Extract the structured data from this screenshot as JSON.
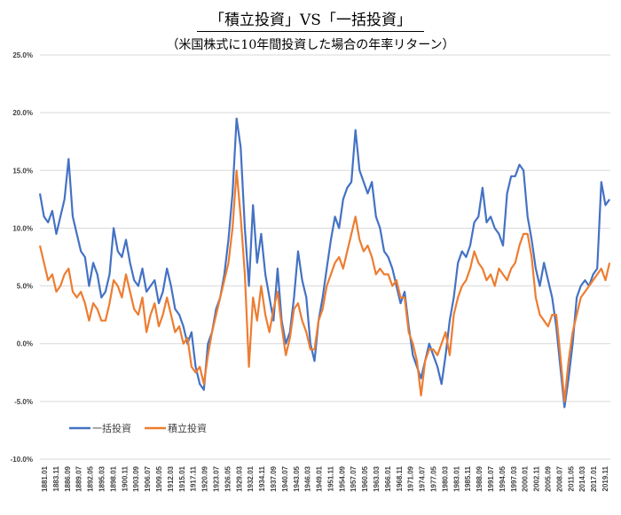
{
  "chart_data": {
    "type": "line",
    "title": "「積立投資」VS「一括投資」",
    "subtitle": "（米国株式に10年間投資した場合の年率リターン）",
    "xlabel": "",
    "ylabel": "",
    "ylim": [
      -0.1,
      0.25
    ],
    "yticks": [
      0.25,
      0.2,
      0.15,
      0.1,
      0.05,
      0.0,
      -0.05,
      -0.1
    ],
    "ytick_labels": [
      "25.0%",
      "20.0%",
      "15.0%",
      "10.0%",
      "5.0%",
      "0.0%",
      "-5.0%",
      "-10.0%"
    ],
    "xlim": [
      1881.0,
      2020.2
    ],
    "xtick_labels": [
      "1881.01",
      "1883.11",
      "1886.09",
      "1889.07",
      "1892.05",
      "1895.03",
      "1898.01",
      "1900.11",
      "1903.09",
      "1906.07",
      "1909.05",
      "1912.03",
      "1915.01",
      "1917.11",
      "1920.09",
      "1923.07",
      "1926.05",
      "1929.03",
      "1932.01",
      "1934.11",
      "1937.09",
      "1940.07",
      "1943.05",
      "1946.03",
      "1949.01",
      "1951.11",
      "1954.09",
      "1957.07",
      "1960.05",
      "1963.03",
      "1966.01",
      "1968.11",
      "1971.09",
      "1974.07",
      "1977.05",
      "1980.03",
      "1983.01",
      "1985.11",
      "1988.09",
      "1991.07",
      "1994.05",
      "1997.03",
      "2000.01",
      "2002.11",
      "2005.09",
      "2008.07",
      "2011.05",
      "2014.03",
      "2017.01",
      "2019.11"
    ],
    "grid": true,
    "legend": "bottom-left",
    "x": [
      1881,
      1882,
      1883,
      1884,
      1885,
      1886,
      1887,
      1888,
      1889,
      1890,
      1891,
      1892,
      1893,
      1894,
      1895,
      1896,
      1897,
      1898,
      1899,
      1900,
      1901,
      1902,
      1903,
      1904,
      1905,
      1906,
      1907,
      1908,
      1909,
      1910,
      1911,
      1912,
      1913,
      1914,
      1915,
      1916,
      1917,
      1918,
      1919,
      1920,
      1921,
      1922,
      1923,
      1924,
      1925,
      1926,
      1927,
      1928,
      1929,
      1930,
      1931,
      1932,
      1933,
      1934,
      1935,
      1936,
      1937,
      1938,
      1939,
      1940,
      1941,
      1942,
      1943,
      1944,
      1945,
      1946,
      1947,
      1948,
      1949,
      1950,
      1951,
      1952,
      1953,
      1954,
      1955,
      1956,
      1957,
      1958,
      1959,
      1960,
      1961,
      1962,
      1963,
      1964,
      1965,
      1966,
      1967,
      1968,
      1969,
      1970,
      1971,
      1972,
      1973,
      1974,
      1975,
      1976,
      1977,
      1978,
      1979,
      1980,
      1981,
      1982,
      1983,
      1984,
      1985,
      1986,
      1987,
      1988,
      1989,
      1990,
      1991,
      1992,
      1993,
      1994,
      1995,
      1996,
      1997,
      1998,
      1999,
      2000,
      2001,
      2002,
      2003,
      2004,
      2005,
      2006,
      2007,
      2008,
      2009,
      2010,
      2011,
      2012,
      2013,
      2014,
      2015,
      2016,
      2017,
      2018,
      2019,
      2020
    ],
    "series": [
      {
        "name": "一括投資",
        "color": "#4472C4",
        "values": [
          13,
          11,
          10.5,
          11.5,
          9.5,
          11,
          12.5,
          16,
          11,
          9.5,
          8,
          7.5,
          5,
          7,
          6,
          4,
          4.5,
          6,
          10,
          8,
          7.5,
          9,
          7,
          5.5,
          5,
          6.5,
          4.5,
          5,
          5.5,
          3.5,
          4.5,
          6.5,
          5,
          3,
          2.5,
          1.5,
          0,
          1,
          -2,
          -3.5,
          -4,
          0,
          1,
          3,
          4,
          6,
          9,
          13,
          19.5,
          17,
          10,
          5,
          12,
          7,
          9.5,
          6,
          4,
          2,
          6.5,
          2,
          0,
          1,
          4,
          8,
          5.5,
          4,
          0,
          -1.5,
          2,
          4,
          6.5,
          9,
          11,
          10,
          12.5,
          13.5,
          14,
          18.5,
          15,
          14,
          13,
          14,
          11,
          10,
          8,
          7.5,
          6.5,
          5,
          3.5,
          4.5,
          1.5,
          -1,
          -2,
          -3,
          -1.5,
          0,
          -1,
          -2,
          -3.5,
          -1,
          2,
          4,
          7,
          8,
          7.5,
          8.5,
          10.5,
          11,
          13.5,
          10.5,
          11,
          10,
          9.5,
          8.5,
          13,
          14.5,
          14.5,
          15.5,
          15,
          11,
          9,
          6.5,
          5,
          7,
          5.5,
          4,
          1.5,
          -2,
          -5.5,
          -3,
          0,
          4,
          5,
          5.5,
          5,
          6,
          6.5,
          14,
          12,
          12.5
        ]
      },
      {
        "name": "積立投資",
        "color": "#ED7D31",
        "values": [
          8.5,
          7,
          5.5,
          6,
          4.5,
          5,
          6,
          6.5,
          4.5,
          4,
          4.5,
          3.5,
          2,
          3.5,
          3,
          2,
          2,
          3.5,
          5.5,
          5,
          4,
          6,
          4.5,
          3,
          2.5,
          4,
          1,
          2.5,
          3.5,
          1.5,
          2.5,
          4,
          2.5,
          1,
          1.5,
          0,
          0.5,
          -2,
          -2.5,
          -2,
          -3.5,
          -1,
          1,
          2.5,
          4,
          5.5,
          7,
          10,
          15,
          11,
          6,
          -2,
          4,
          2,
          5,
          2.5,
          1,
          3,
          4.5,
          1.5,
          -1,
          0.5,
          3,
          3.5,
          2,
          1,
          -0.5,
          -0.5,
          2,
          3,
          5,
          6,
          7,
          7.5,
          6.5,
          8,
          9.5,
          11,
          9,
          8,
          8.5,
          7.5,
          6,
          6.5,
          6,
          6,
          5,
          5.5,
          4,
          4,
          1,
          0,
          -1.5,
          -4.5,
          -1.5,
          -0.5,
          -0.5,
          -1,
          0,
          1,
          -1,
          2.5,
          4,
          5,
          5.5,
          6.5,
          8,
          7,
          6.5,
          5.5,
          6,
          5,
          6.5,
          6,
          5.5,
          6.5,
          7,
          8.5,
          9.5,
          9.5,
          7.5,
          4,
          2.5,
          2,
          1.5,
          2.5,
          2.5,
          -1,
          -5,
          -1.5,
          1,
          2.5,
          4,
          4.5,
          5,
          5.5,
          6,
          6.5,
          5.5,
          7
        ]
      }
    ]
  }
}
